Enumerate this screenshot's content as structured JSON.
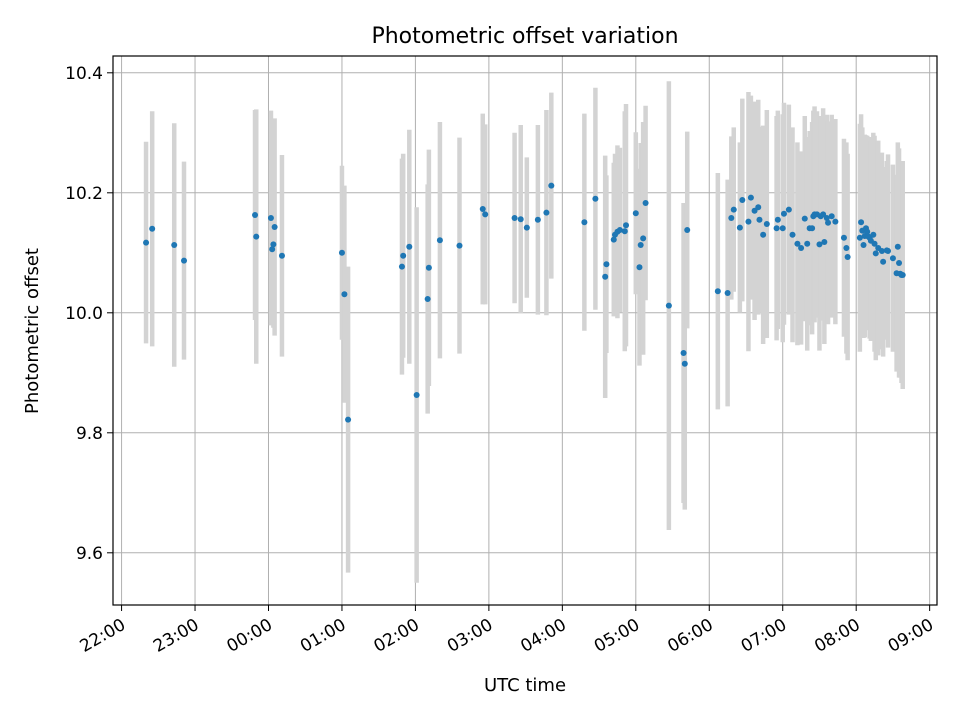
{
  "chart_data": {
    "type": "scatter",
    "title": "Photometric offset variation",
    "xlabel": "UTC time",
    "ylabel": "Photometric offset",
    "x_unit": "time of day (UTC), crossing midnight",
    "xlim": [
      "21:53",
      "09:06"
    ],
    "ylim": [
      9.513,
      10.428
    ],
    "grid": true,
    "legend": "none",
    "xticks": [
      "22:00",
      "23:00",
      "00:00",
      "01:00",
      "02:00",
      "03:00",
      "04:00",
      "05:00",
      "06:00",
      "07:00",
      "08:00",
      "09:00"
    ],
    "yticks": [
      "9.6",
      "9.8",
      "10.0",
      "10.2",
      "10.4"
    ],
    "ytick_values": [
      9.6,
      9.8,
      10.0,
      10.2,
      10.4
    ],
    "colors": {
      "marker": "#1f77b4",
      "errorbar": "#d3d3d3",
      "grid": "#b0b0b0"
    },
    "series": [
      {
        "x": [
          "22:20",
          "22:25",
          "22:43",
          "22:51",
          "23:49",
          "23:50",
          "24:02",
          "24:03",
          "24:04",
          "24:05",
          "24:11",
          "25:00",
          "25:02",
          "25:05",
          "25:49",
          "25:50",
          "25:55",
          "26:01",
          "26:10",
          "26:11",
          "26:20",
          "26:36",
          "26:55",
          "26:57",
          "27:21",
          "27:26",
          "27:31",
          "27:40",
          "27:47",
          "27:51",
          "28:18",
          "28:27",
          "28:35",
          "28:36",
          "28:42",
          "28:43",
          "28:45",
          "28:47",
          "28:51",
          "28:52",
          "29:00",
          "29:03",
          "29:04",
          "29:06",
          "29:08",
          "29:27",
          "29:39",
          "29:40",
          "29:42",
          "30:07",
          "30:15",
          "30:18",
          "30:20",
          "30:25",
          "30:27",
          "30:32",
          "30:34",
          "30:37",
          "30:40",
          "30:41",
          "30:44",
          "30:47",
          "30:55",
          "30:56",
          "31:00",
          "31:01",
          "31:05",
          "31:08",
          "31:12",
          "31:15",
          "31:18",
          "31:20",
          "31:22",
          "31:24",
          "31:25",
          "31:26",
          "31:28",
          "31:30",
          "31:31",
          "31:33",
          "31:34",
          "31:36",
          "31:37",
          "31:40",
          "31:43",
          "31:50",
          "31:52",
          "31:53",
          "32:03",
          "32:04",
          "32:05",
          "32:06",
          "32:07",
          "32:08",
          "32:09",
          "32:10",
          "32:11",
          "32:12",
          "32:14",
          "32:15",
          "32:16",
          "32:18",
          "32:21",
          "32:22",
          "32:25",
          "32:26",
          "32:30",
          "32:33",
          "32:34",
          "32:35",
          "32:36",
          "32:37",
          "32:38"
        ],
        "y": [
          10.117,
          10.14,
          10.113,
          10.087,
          10.163,
          10.127,
          10.158,
          10.106,
          10.114,
          10.143,
          10.095,
          10.1,
          10.031,
          9.822,
          10.077,
          10.095,
          10.11,
          9.863,
          10.023,
          10.075,
          10.121,
          10.112,
          10.173,
          10.164,
          10.158,
          10.156,
          10.142,
          10.155,
          10.167,
          10.212,
          10.151,
          10.19,
          10.06,
          10.081,
          10.122,
          10.13,
          10.135,
          10.138,
          10.136,
          10.146,
          10.166,
          10.076,
          10.113,
          10.124,
          10.183,
          10.012,
          9.933,
          9.915,
          10.138,
          10.036,
          10.033,
          10.158,
          10.172,
          10.142,
          10.188,
          10.152,
          10.192,
          10.17,
          10.176,
          10.155,
          10.13,
          10.148,
          10.141,
          10.155,
          10.141,
          10.165,
          10.172,
          10.13,
          10.115,
          10.108,
          10.157,
          10.115,
          10.141,
          10.141,
          10.161,
          10.164,
          10.164,
          10.114,
          10.161,
          10.164,
          10.118,
          10.158,
          10.15,
          10.161,
          10.152,
          10.125,
          10.108,
          10.093,
          10.125,
          10.151,
          10.137,
          10.113,
          10.128,
          10.141,
          10.135,
          10.127,
          10.125,
          10.12,
          10.13,
          10.115,
          10.099,
          10.108,
          10.103,
          10.085,
          10.104,
          10.103,
          10.091,
          10.066,
          10.11,
          10.083,
          10.065,
          10.063,
          10.063
        ],
        "yerr": [
          0.168,
          0.196,
          0.203,
          0.165,
          0.175,
          0.212,
          0.179,
          0.102,
          0.139,
          0.181,
          0.168,
          0.145,
          0.181,
          0.255,
          0.18,
          0.17,
          0.195,
          0.313,
          0.191,
          0.197,
          0.197,
          0.18,
          0.159,
          0.15,
          0.142,
          0.157,
          0.117,
          0.158,
          0.171,
          0.155,
          0.181,
          0.185,
          0.202,
          0.148,
          0.128,
          0.135,
          0.144,
          0.137,
          0.2,
          0.202,
          0.135,
          0.164,
          0.17,
          0.194,
          0.162,
          0.374,
          0.25,
          0.243,
          0.164,
          0.197,
          0.189,
          0.136,
          0.137,
          0.142,
          0.169,
          0.216,
          0.17,
          0.182,
          0.179,
          0.155,
          0.182,
          0.19,
          0.187,
          0.182,
          0.19,
          0.185,
          0.175,
          0.179,
          0.169,
          0.161,
          0.171,
          0.178,
          0.162,
          0.177,
          0.176,
          0.18,
          0.172,
          0.177,
          0.167,
          0.177,
          0.17,
          0.172,
          0.169,
          0.169,
          0.171,
          0.165,
          0.176,
          0.172,
          0.19,
          0.18,
          0.172,
          0.155,
          0.169,
          0.155,
          0.16,
          0.156,
          0.168,
          0.167,
          0.17,
          0.18,
          0.178,
          0.179,
          0.164,
          0.158,
          0.149,
          0.161,
          0.156,
          0.164,
          0.174,
          0.191,
          0.173,
          0.18,
          0.19
        ]
      }
    ]
  }
}
